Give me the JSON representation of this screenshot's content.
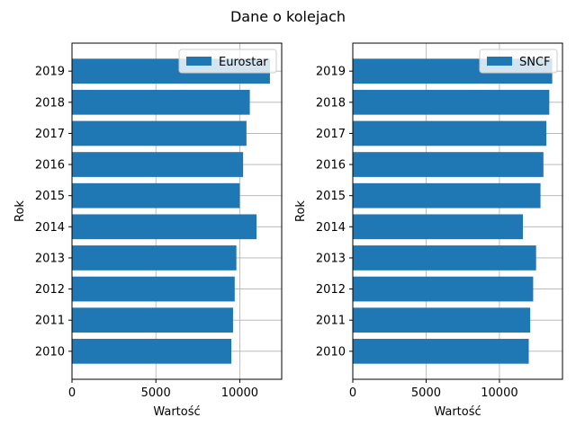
{
  "figure": {
    "suptitle": "Dane o kolejach",
    "bar_color": "#1f77b4",
    "grid_color": "#b0b0b0"
  },
  "chart_data": [
    {
      "type": "bar",
      "orientation": "horizontal",
      "categories": [
        "2010",
        "2011",
        "2012",
        "2013",
        "2014",
        "2015",
        "2016",
        "2017",
        "2018",
        "2019"
      ],
      "series": [
        {
          "name": "Eurostar",
          "values": [
            9500,
            9600,
            9700,
            9800,
            11000,
            10000,
            10200,
            10400,
            10600,
            11800
          ]
        }
      ],
      "xlabel": "Wartość",
      "ylabel": "Rok",
      "xlim": [
        0,
        12500
      ],
      "xticks": [
        0,
        5000,
        10000
      ],
      "grid": true,
      "legend": "top-right"
    },
    {
      "type": "bar",
      "orientation": "horizontal",
      "categories": [
        "2010",
        "2011",
        "2012",
        "2013",
        "2014",
        "2015",
        "2016",
        "2017",
        "2018",
        "2019"
      ],
      "series": [
        {
          "name": "SNCF",
          "values": [
            12000,
            12100,
            12300,
            12500,
            11600,
            12800,
            13000,
            13200,
            13400,
            13600
          ]
        }
      ],
      "xlabel": "Wartość",
      "ylabel": "Rok",
      "xlim": [
        0,
        14300
      ],
      "xticks": [
        0,
        5000,
        10000
      ],
      "grid": true,
      "legend": "top-right"
    }
  ]
}
